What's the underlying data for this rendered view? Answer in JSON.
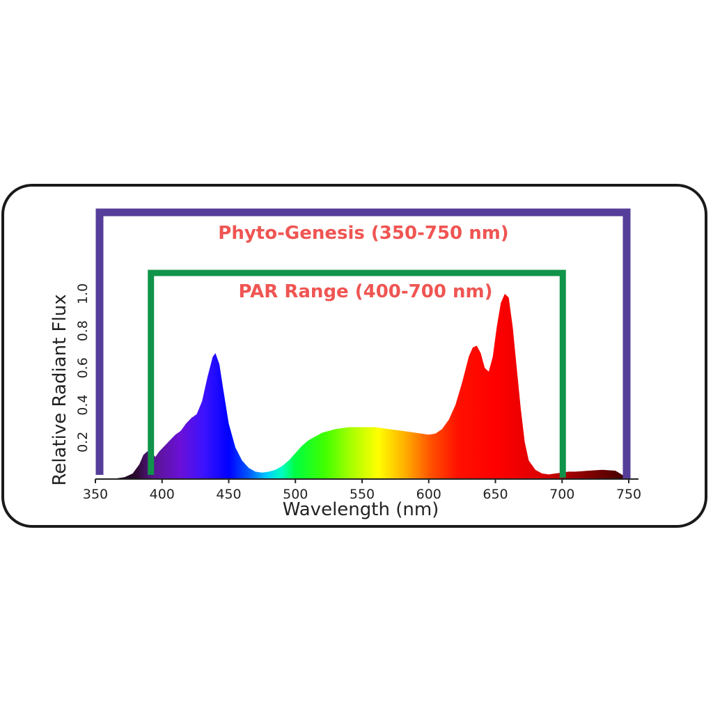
{
  "chart_data": {
    "type": "area",
    "title": "",
    "xlabel": "Wavelength (nm)",
    "ylabel": "Relative Radiant Flux",
    "xlim": [
      350,
      750
    ],
    "ylim": [
      0,
      1.0
    ],
    "grid": false,
    "legend": "none",
    "x_ticks": [
      "350",
      "400",
      "450",
      "500",
      "550",
      "600",
      "650",
      "700",
      "750"
    ],
    "x_tick_values": [
      350,
      400,
      450,
      500,
      550,
      600,
      650,
      700,
      750
    ],
    "y_ticks": [
      "0.2",
      "0.4",
      "0.6",
      "0.8",
      "1.0"
    ],
    "y_tick_values": [
      0.2,
      0.4,
      0.6,
      0.8,
      1.0
    ],
    "series": [
      {
        "x": [
          355,
          365,
          372,
          378,
          383,
          386,
          389,
          392,
          395,
          398,
          402,
          406,
          410,
          414,
          418,
          422,
          426,
          430,
          434,
          438,
          440,
          443,
          446,
          450,
          455,
          460,
          465,
          470,
          475,
          480,
          485,
          490,
          495,
          500,
          505,
          510,
          520,
          530,
          540,
          550,
          560,
          570,
          580,
          590,
          600,
          605,
          610,
          615,
          620,
          625,
          630,
          633,
          636,
          639,
          642,
          645,
          648,
          651,
          654,
          657,
          660,
          663,
          666,
          669,
          672,
          675,
          680,
          685,
          690,
          695,
          700,
          705,
          710,
          720,
          730,
          740,
          748
        ],
        "y": [
          0.0,
          0.003,
          0.01,
          0.03,
          0.08,
          0.13,
          0.15,
          0.14,
          0.12,
          0.15,
          0.18,
          0.21,
          0.24,
          0.26,
          0.3,
          0.33,
          0.35,
          0.42,
          0.55,
          0.66,
          0.68,
          0.62,
          0.48,
          0.3,
          0.17,
          0.1,
          0.06,
          0.04,
          0.035,
          0.04,
          0.05,
          0.07,
          0.1,
          0.14,
          0.18,
          0.21,
          0.25,
          0.27,
          0.28,
          0.28,
          0.28,
          0.27,
          0.26,
          0.25,
          0.24,
          0.245,
          0.27,
          0.32,
          0.4,
          0.52,
          0.66,
          0.71,
          0.72,
          0.68,
          0.6,
          0.58,
          0.66,
          0.82,
          0.95,
          1.0,
          0.98,
          0.82,
          0.6,
          0.38,
          0.2,
          0.1,
          0.05,
          0.03,
          0.025,
          0.03,
          0.035,
          0.04,
          0.04,
          0.045,
          0.05,
          0.045,
          0.01
        ]
      }
    ],
    "annotations": [
      {
        "text": "Phyto-Genesis (350-750 nm)",
        "x_start": 350,
        "x_end": 750,
        "color": "#553e99"
      },
      {
        "text": "PAR Range (400-700 nm)",
        "x_start": 400,
        "x_end": 700,
        "color": "#10934a"
      }
    ],
    "colors": {
      "label_text": "#ef5552",
      "frame": "#1a1a1a",
      "axis": "#222222"
    }
  }
}
